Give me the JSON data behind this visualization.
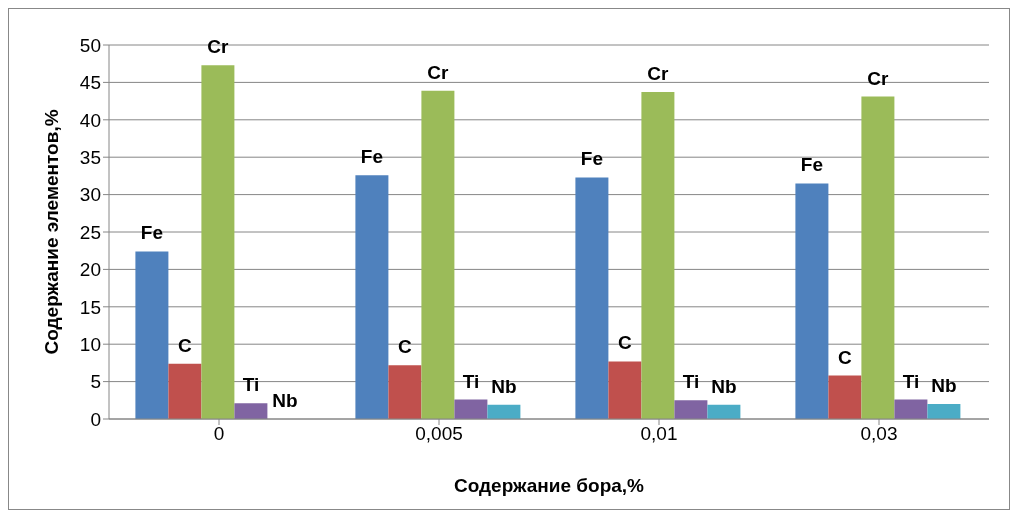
{
  "chart_data": {
    "type": "bar",
    "xlabel": "Содержание бора,%",
    "ylabel": "Содержание элементов,%",
    "categories": [
      "0",
      "0,005",
      "0,01",
      "0,03"
    ],
    "series": [
      {
        "name": "Fe",
        "color": "#4f81bd",
        "values": [
          22.4,
          32.6,
          32.3,
          31.5
        ]
      },
      {
        "name": "C",
        "color": "#c0504d",
        "values": [
          7.4,
          7.2,
          7.7,
          5.8
        ]
      },
      {
        "name": "Cr",
        "color": "#9bbb59",
        "values": [
          47.3,
          43.9,
          43.7,
          43.1
        ]
      },
      {
        "name": "Ti",
        "color": "#8064a2",
        "values": [
          2.1,
          2.6,
          2.5,
          2.6
        ]
      },
      {
        "name": "Nb",
        "color": "#4bacc6",
        "values": [
          0,
          1.9,
          1.9,
          2
        ]
      }
    ],
    "annotations": [
      {
        "text": "Nb",
        "x": "0",
        "y": 0
      }
    ],
    "ylim": [
      0,
      50
    ],
    "yticks": [
      0,
      5,
      10,
      15,
      20,
      25,
      30,
      35,
      40,
      45,
      50
    ],
    "grid": "y",
    "legend": false
  }
}
